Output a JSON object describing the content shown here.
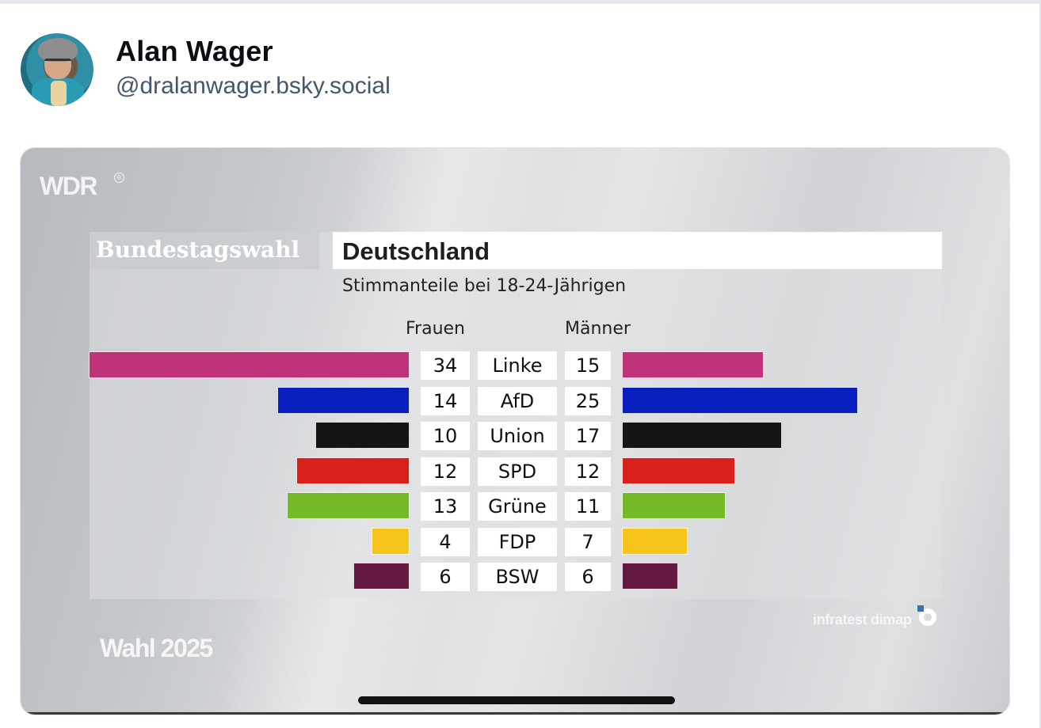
{
  "post": {
    "author_name": "Alan Wager",
    "author_handle": "@dralanwager.bsky.social"
  },
  "graphic": {
    "broadcaster": "WDR",
    "registered_mark": "®",
    "header_left": "Bundestagswahl",
    "header_right": "Deutschland",
    "subtitle": "Stimmanteile bei 18-24-Jährigen",
    "col_women": "Frauen",
    "col_men": "Männer",
    "source": "infratest dimap",
    "footer": "Wahl 2025"
  },
  "chart_data": {
    "type": "bar",
    "title": "Deutschland",
    "subtitle": "Stimmanteile bei 18-24-Jährigen",
    "categories": [
      "Linke",
      "AfD",
      "Union",
      "SPD",
      "Grüne",
      "FDP",
      "BSW"
    ],
    "series": [
      {
        "name": "Frauen",
        "values": [
          34,
          14,
          10,
          12,
          13,
          4,
          6
        ]
      },
      {
        "name": "Männer",
        "values": [
          15,
          25,
          17,
          12,
          11,
          7,
          6
        ]
      }
    ],
    "colors": [
      "#c0327a",
      "#0a1fbf",
      "#141414",
      "#d9201b",
      "#74b928",
      "#f6c41b",
      "#651840"
    ],
    "legend": "column-headers"
  }
}
